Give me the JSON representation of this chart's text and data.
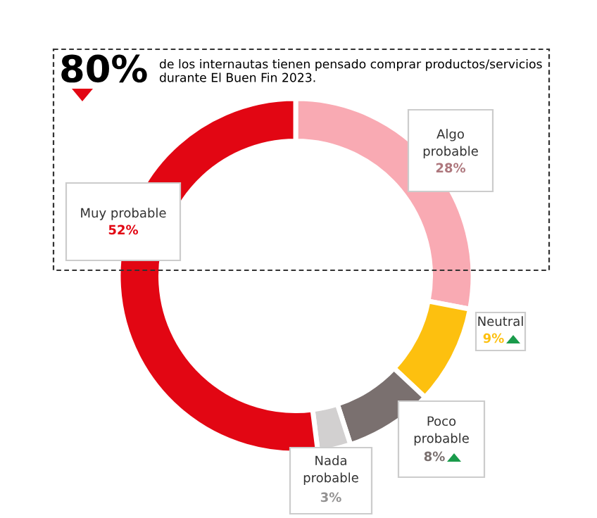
{
  "chart_data": {
    "type": "donut",
    "title": "80%",
    "subtitle": "de los internautas tienen pensado comprar productos/servicios\ndurante El Buen Fin 2023.",
    "categories": [
      "Algo\nprobable",
      "Neutral",
      "Poco\nprobable",
      "Nada\nprobable",
      "Muy probable"
    ],
    "values": [
      28,
      9,
      8,
      3,
      52
    ],
    "value_labels": [
      "28%",
      "9%",
      "8%",
      "3%",
      "52%"
    ],
    "colors": [
      "#f9aab3",
      "#fdc00f",
      "#7a706f",
      "#d2d0d0",
      "#e20613"
    ],
    "legend": false
  }
}
